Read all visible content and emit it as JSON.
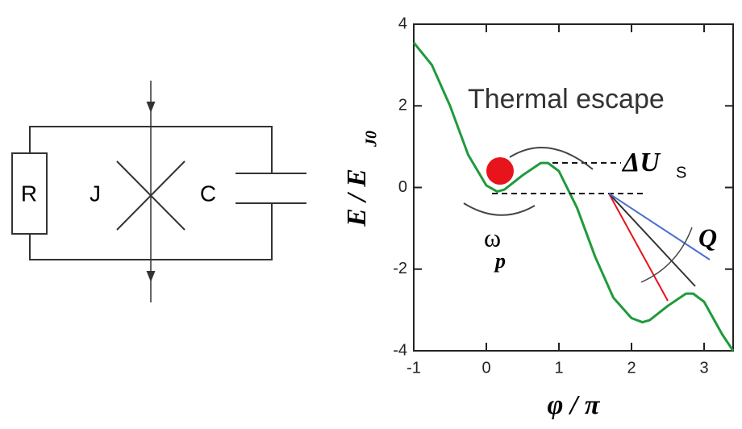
{
  "circuit": {
    "labels": [
      "R",
      "J",
      "C"
    ]
  },
  "chart_data": {
    "type": "line",
    "x": [
      -1,
      -0.75,
      -0.5,
      -0.25,
      0,
      0.15,
      0.25,
      0.5,
      0.75,
      0.85,
      1,
      1.25,
      1.5,
      1.75,
      2,
      2.15,
      2.25,
      2.5,
      2.75,
      2.85,
      3,
      3.25,
      3.4
    ],
    "series": [
      {
        "color": "#1f9a3c",
        "values": [
          3.55,
          3.0,
          2.0,
          0.8,
          0.05,
          -0.1,
          -0.05,
          0.3,
          0.6,
          0.6,
          0.4,
          -0.5,
          -1.7,
          -2.7,
          -3.2,
          -3.3,
          -3.25,
          -2.9,
          -2.6,
          -2.6,
          -2.8,
          -3.6,
          -4.0
        ]
      }
    ],
    "xlim": [
      -1,
      3.4
    ],
    "ylim": [
      -4,
      4
    ],
    "xticks": [
      -1,
      0,
      1,
      2,
      3
    ],
    "yticks": [
      -4,
      -2,
      0,
      2,
      4
    ],
    "xlabel": "φ / π",
    "ylabel": "E / E",
    "ylabel_sub": "J0",
    "annotations": {
      "escape": "Thermal escape",
      "barrier": "ΔU",
      "barrier_sub": "S",
      "omega": "ω",
      "omega_sub": "p",
      "q": "Q"
    }
  }
}
